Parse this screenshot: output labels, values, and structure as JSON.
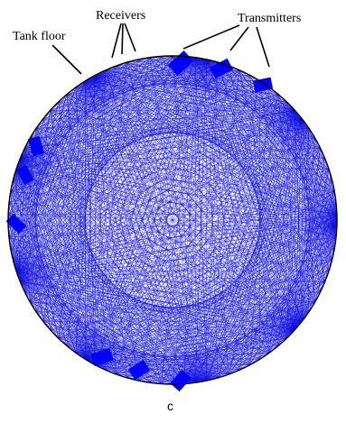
{
  "labels": {
    "tank_floor": "Tank floor",
    "receivers": "Receivers",
    "transmitters": "Transmitters"
  },
  "caption": "c",
  "colors": {
    "paths": "#1010e0",
    "clusters": "#0000ff",
    "circle": "#000000",
    "leaders": "#000000"
  },
  "network": {
    "sensor_count": 90,
    "transmitter_clusters": 9
  }
}
